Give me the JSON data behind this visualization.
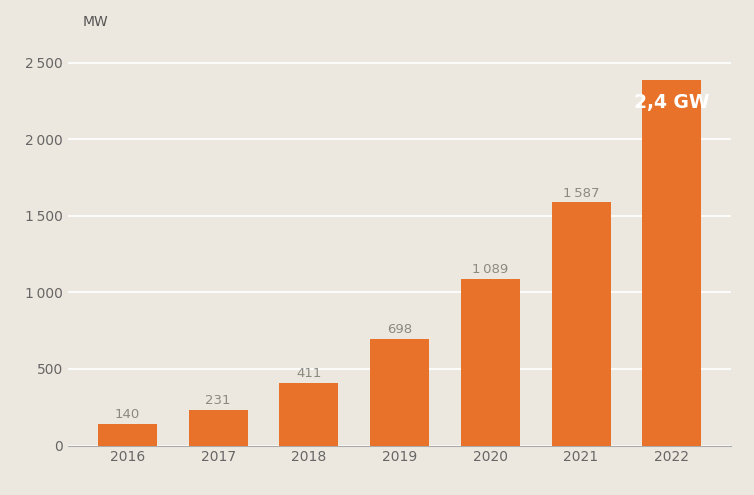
{
  "years": [
    "2016",
    "2017",
    "2018",
    "2019",
    "2020",
    "2021",
    "2022"
  ],
  "values": [
    140.03,
    230.99,
    411.06,
    698.05,
    1089.23,
    1587.01,
    2384
  ],
  "bar_labels": [
    "140",
    "231",
    "411",
    "698",
    "1 089",
    "1 587"
  ],
  "bar_color": "#e8722a",
  "background_color": "#ede8df",
  "ylabel": "MW",
  "ylim": [
    0,
    2650
  ],
  "yticks": [
    0,
    500,
    1000,
    1500,
    2000,
    2500
  ],
  "ytick_labels": [
    "0",
    "500",
    "1 000",
    "1 500",
    "2 000",
    "2 500"
  ],
  "annotation_2022": "2,4 GW",
  "label_color": "#8a8a80",
  "label_fontsize": 9.5,
  "tick_fontsize": 10,
  "grid_color": "#ffffff",
  "grid_linewidth": 1.2,
  "bar_width": 0.65
}
